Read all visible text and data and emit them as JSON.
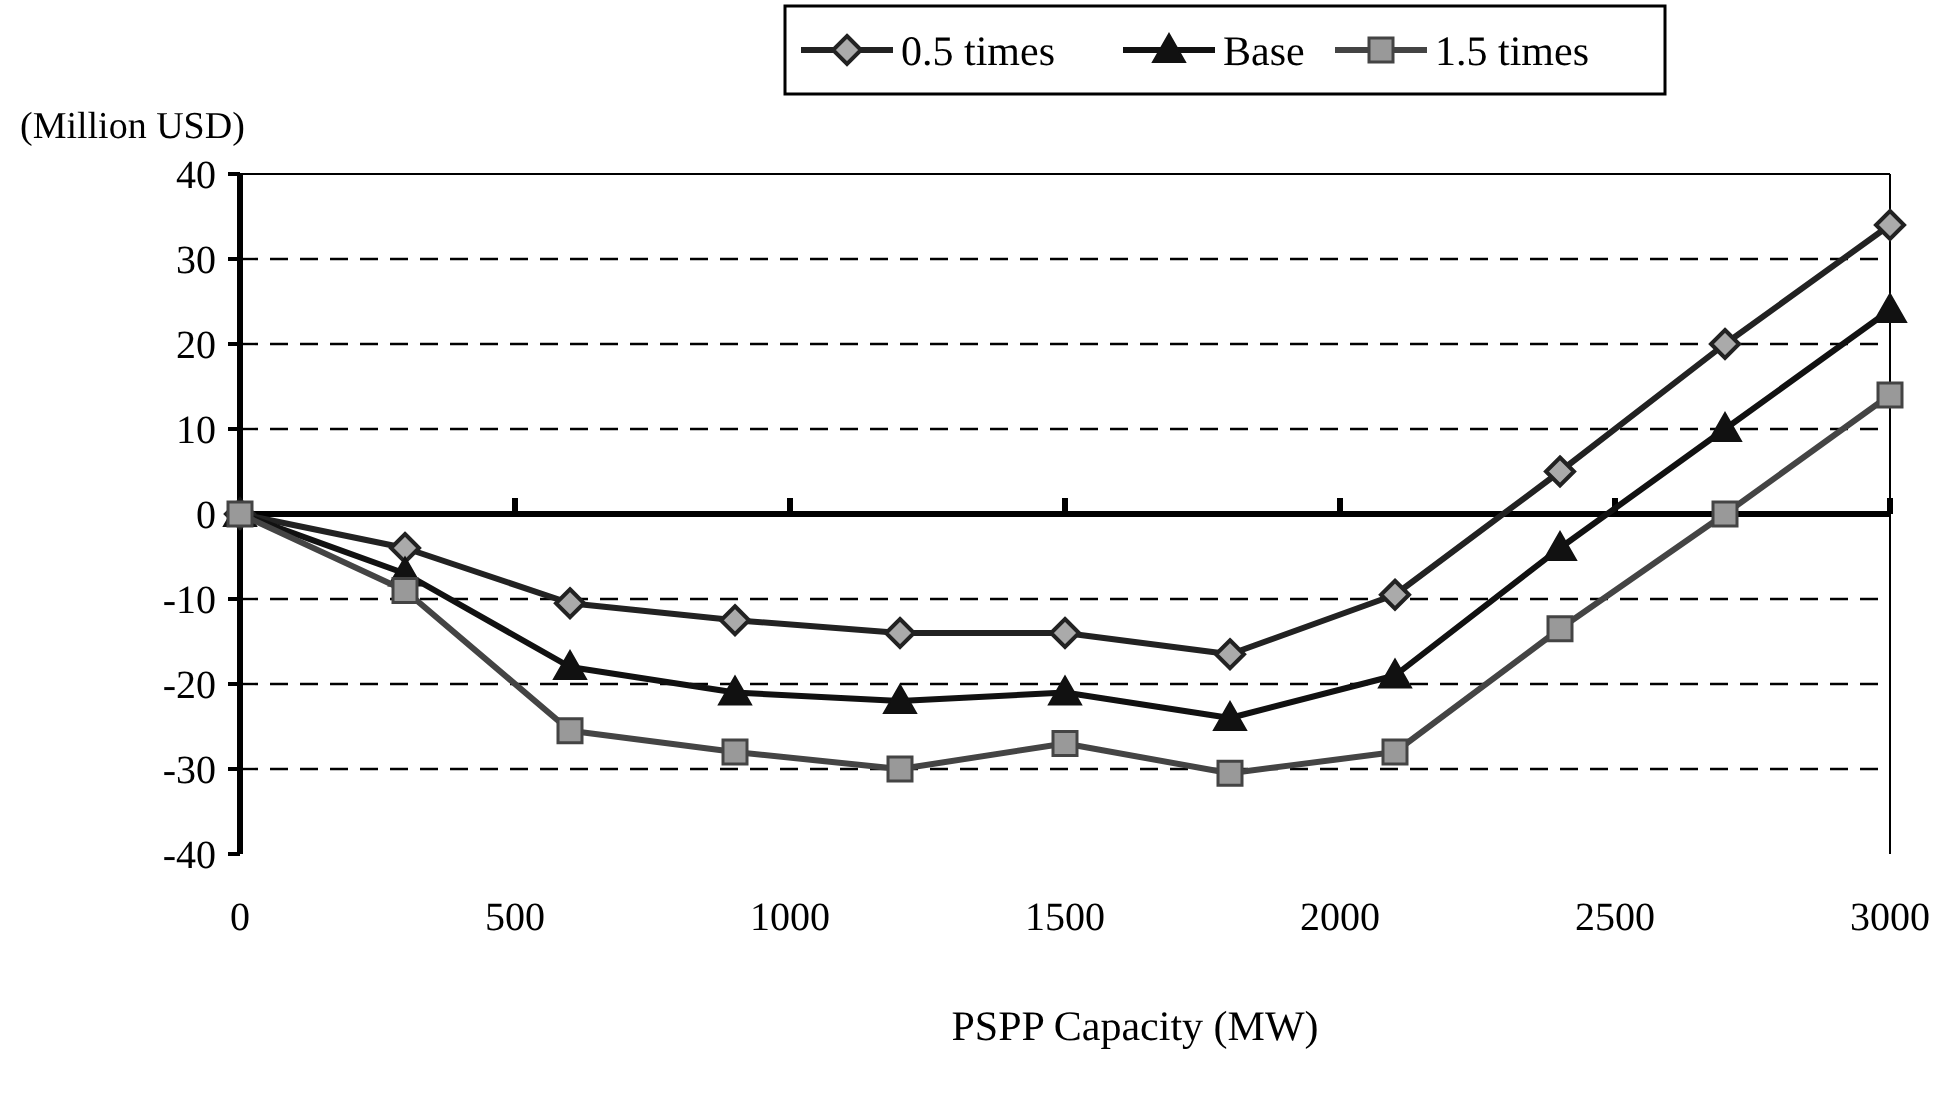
{
  "chart_data": {
    "type": "line",
    "ylabel": "(Million USD)",
    "xlabel": "PSPP Capacity (MW)",
    "x": [
      0,
      300,
      600,
      900,
      1200,
      1500,
      1800,
      2100,
      2400,
      2700,
      3000
    ],
    "series": [
      {
        "name": "0.5 times",
        "color": "#222222",
        "marker": "diamond",
        "values": [
          0,
          -4,
          -10.5,
          -12.5,
          -14,
          -14,
          -16.5,
          -9.5,
          5,
          20,
          34
        ]
      },
      {
        "name": "Base",
        "color": "#111111",
        "marker": "triangle",
        "values": [
          0,
          -7,
          -18,
          -21,
          -22,
          -21,
          -24,
          -19,
          -4,
          10,
          24
        ]
      },
      {
        "name": "1.5 times",
        "color": "#444444",
        "marker": "square",
        "values": [
          0,
          -9,
          -25.5,
          -28,
          -30,
          -27,
          -30.5,
          -28,
          -13.5,
          0,
          14
        ]
      }
    ],
    "xlim": [
      0,
      3000
    ],
    "xticks": [
      0,
      500,
      1000,
      1500,
      2000,
      2500,
      3000
    ],
    "ylim": [
      -40,
      40
    ],
    "yticks": [
      -40,
      -30,
      -20,
      -10,
      0,
      10,
      20,
      30,
      40
    ],
    "grid": "y",
    "legend": "top",
    "line_style": "solid"
  }
}
